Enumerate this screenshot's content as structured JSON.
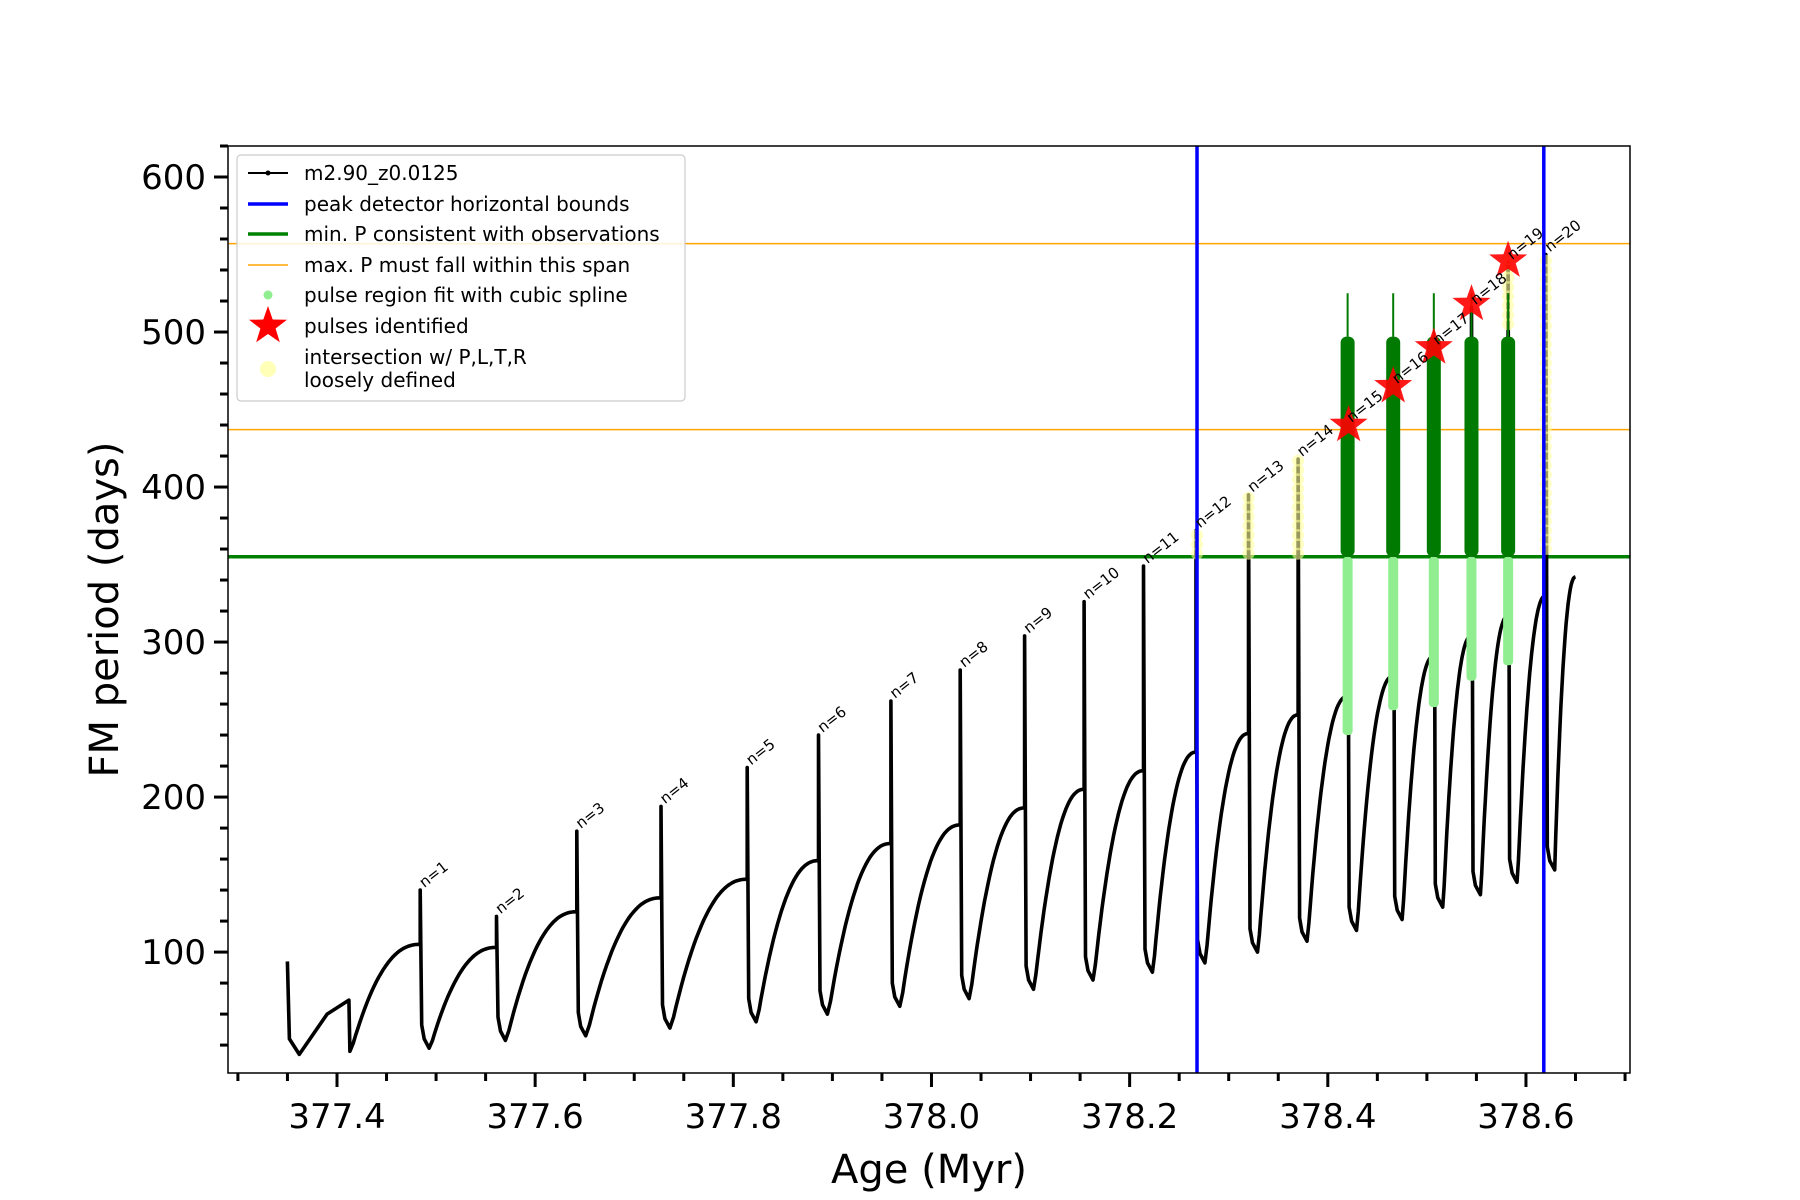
{
  "chart_data": {
    "type": "line",
    "xlabel": "Age (Myr)",
    "ylabel": "FM period (days)",
    "xlim": [
      377.29,
      378.705
    ],
    "ylim": [
      22,
      620
    ],
    "xticks": [
      "377.4",
      "377.6",
      "377.8",
      "378.0",
      "378.2",
      "378.4",
      "378.6"
    ],
    "yticks": [
      "100",
      "200",
      "300",
      "400",
      "500",
      "600"
    ],
    "grid": false,
    "legend_position": "top-left",
    "legend": [
      {
        "label": "m2.90_z0.0125",
        "marker": "line-dot",
        "color": "#000000"
      },
      {
        "label": "peak detector horizontal bounds",
        "marker": "line",
        "color": "#0000ff"
      },
      {
        "label": "min. P consistent with observations",
        "marker": "line",
        "color": "#008000"
      },
      {
        "label": "max. P must fall within this span",
        "marker": "thin-line",
        "color": "#ffa500"
      },
      {
        "label": "pulse region fit with cubic spline",
        "marker": "dot",
        "color": "#90ee90"
      },
      {
        "label": "pulses identified",
        "marker": "star",
        "color": "#ff0000"
      },
      {
        "label": "intersection w/ P,L,T,R",
        "marker": "circle",
        "color": "#ffff99"
      },
      {
        "label": "loosely defined",
        "marker": "none",
        "color": "#000000"
      }
    ],
    "colors": {
      "track": "#000000",
      "bounds": "#0000ff",
      "minP": "#008000",
      "maxP": "#ffa500",
      "spline": "#90ee90",
      "pulse_region": "#007a00",
      "stars": "#ff0000",
      "intersection": "#ffff99"
    },
    "vertical_bounds_x": [
      378.268,
      378.618
    ],
    "min_P": 355,
    "max_P_span": [
      437,
      557
    ],
    "start_segment": {
      "x": [
        377.35,
        377.352,
        377.362,
        377.39,
        377.412,
        377.413
      ],
      "y": [
        94,
        44,
        34,
        60,
        69,
        36
      ]
    },
    "pulses": [
      {
        "n": "n=1",
        "x": 377.484,
        "before": 105,
        "top": 140,
        "dip": 38
      },
      {
        "n": "n=2",
        "x": 377.561,
        "before": 103,
        "top": 123,
        "dip": 43
      },
      {
        "n": "n=3",
        "x": 377.642,
        "before": 126,
        "top": 178,
        "dip": 46
      },
      {
        "n": "n=4",
        "x": 377.727,
        "before": 135,
        "top": 194,
        "dip": 51
      },
      {
        "n": "n=5",
        "x": 377.814,
        "before": 147,
        "top": 219,
        "dip": 55
      },
      {
        "n": "n=6",
        "x": 377.886,
        "before": 159,
        "top": 240,
        "dip": 60
      },
      {
        "n": "n=7",
        "x": 377.959,
        "before": 170,
        "top": 262,
        "dip": 65
      },
      {
        "n": "n=8",
        "x": 378.029,
        "before": 182,
        "top": 282,
        "dip": 70
      },
      {
        "n": "n=9",
        "x": 378.094,
        "before": 193,
        "top": 304,
        "dip": 76
      },
      {
        "n": "n=10",
        "x": 378.154,
        "before": 205,
        "top": 326,
        "dip": 82
      },
      {
        "n": "n=11",
        "x": 378.214,
        "before": 217,
        "top": 349,
        "dip": 87
      },
      {
        "n": "n=12",
        "x": 378.267,
        "before": 229,
        "top": 372,
        "dip": 93
      },
      {
        "n": "n=13",
        "x": 378.32,
        "before": 241,
        "top": 395,
        "dip": 100
      },
      {
        "n": "n=14",
        "x": 378.37,
        "before": 253,
        "top": 418,
        "dip": 107
      },
      {
        "n": "n=15",
        "x": 378.42,
        "before": 265,
        "top": 440,
        "dip": 114
      },
      {
        "n": "n=16",
        "x": 378.466,
        "before": 278,
        "top": 465,
        "dip": 121
      },
      {
        "n": "n=17",
        "x": 378.507,
        "before": 291,
        "top": 490,
        "dip": 129
      },
      {
        "n": "n=18",
        "x": 378.545,
        "before": 304,
        "top": 516,
        "dip": 137
      },
      {
        "n": "n=19",
        "x": 378.582,
        "before": 317,
        "top": 545,
        "dip": 145
      },
      {
        "n": "n=20",
        "x": 378.62,
        "before": 330,
        "top": 550,
        "dip": 153
      }
    ],
    "end_point": {
      "x": 378.65,
      "y": 342
    },
    "stars": [
      {
        "x": 378.421,
        "y": 440
      },
      {
        "x": 378.466,
        "y": 465
      },
      {
        "x": 378.507,
        "y": 490
      },
      {
        "x": 378.545,
        "y": 518
      },
      {
        "x": 378.582,
        "y": 546
      }
    ],
    "pulse_regions": [
      {
        "x": 378.42,
        "y_low": 240,
        "y_high": 497,
        "spike": 525
      },
      {
        "x": 378.466,
        "y_low": 256,
        "y_high": 497,
        "spike": 525
      },
      {
        "x": 378.507,
        "y_low": 258,
        "y_high": 497,
        "spike": 525
      },
      {
        "x": 378.545,
        "y_low": 275,
        "y_high": 497,
        "spike": 525
      },
      {
        "x": 378.582,
        "y_low": 285,
        "y_high": 497,
        "spike": 525
      }
    ],
    "intersections": [
      {
        "x": 378.268,
        "y_low": 357,
        "y_high": 372
      },
      {
        "x": 378.32,
        "y_low": 357,
        "y_high": 395
      },
      {
        "x": 378.37,
        "y_low": 357,
        "y_high": 418
      },
      {
        "x": 378.582,
        "y_low": 505,
        "y_high": 550
      },
      {
        "x": 378.62,
        "y_low": 360,
        "y_high": 550
      }
    ]
  }
}
